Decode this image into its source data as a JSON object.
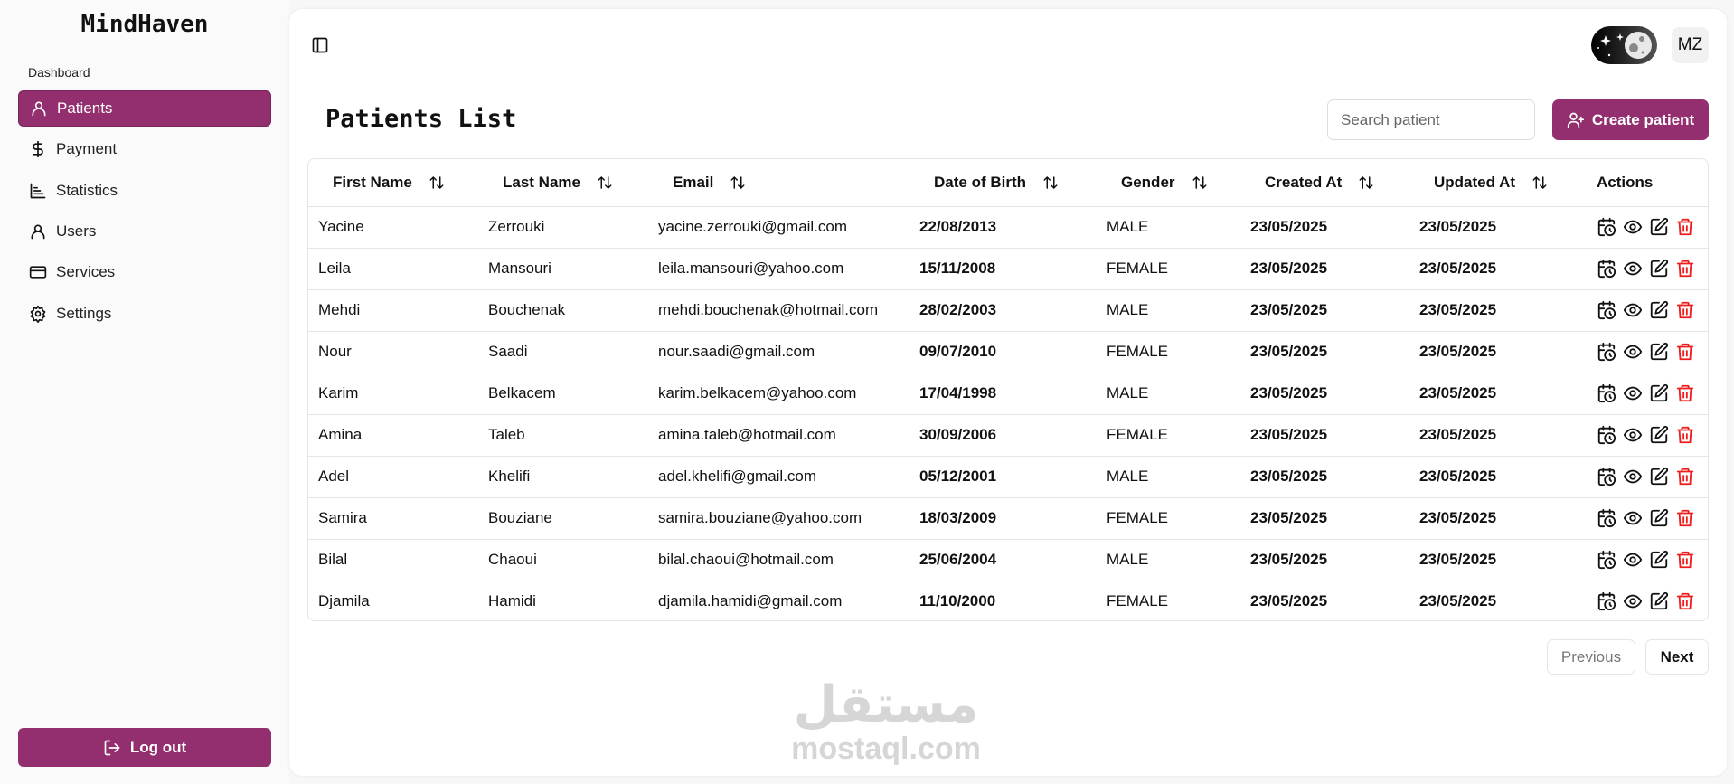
{
  "app": {
    "brand": "MindHaven",
    "section": "Dashboard"
  },
  "sidebar": {
    "items": [
      {
        "label": "Patients",
        "icon": "user-icon",
        "active": true
      },
      {
        "label": "Payment",
        "icon": "dollar-icon"
      },
      {
        "label": "Statistics",
        "icon": "chart-icon"
      },
      {
        "label": "Users",
        "icon": "user-icon"
      },
      {
        "label": "Services",
        "icon": "credit-card-icon"
      },
      {
        "label": "Settings",
        "icon": "gear-icon"
      }
    ],
    "logout": "Log out"
  },
  "header": {
    "avatar": "MZ",
    "theme": "dark"
  },
  "page": {
    "title": "Patients List",
    "search_placeholder": "Search patient",
    "create_label": "Create patient"
  },
  "table": {
    "columns": [
      "First Name",
      "Last Name",
      "Email",
      "Date of Birth",
      "Gender",
      "Created At",
      "Updated At",
      "Actions"
    ],
    "rows": [
      [
        "Yacine",
        "Zerrouki",
        "yacine.zerrouki@gmail.com",
        "22/08/2013",
        "MALE",
        "23/05/2025",
        "23/05/2025"
      ],
      [
        "Leila",
        "Mansouri",
        "leila.mansouri@yahoo.com",
        "15/11/2008",
        "FEMALE",
        "23/05/2025",
        "23/05/2025"
      ],
      [
        "Mehdi",
        "Bouchenak",
        "mehdi.bouchenak@hotmail.com",
        "28/02/2003",
        "MALE",
        "23/05/2025",
        "23/05/2025"
      ],
      [
        "Nour",
        "Saadi",
        "nour.saadi@gmail.com",
        "09/07/2010",
        "FEMALE",
        "23/05/2025",
        "23/05/2025"
      ],
      [
        "Karim",
        "Belkacem",
        "karim.belkacem@yahoo.com",
        "17/04/1998",
        "MALE",
        "23/05/2025",
        "23/05/2025"
      ],
      [
        "Amina",
        "Taleb",
        "amina.taleb@hotmail.com",
        "30/09/2006",
        "FEMALE",
        "23/05/2025",
        "23/05/2025"
      ],
      [
        "Adel",
        "Khelifi",
        "adel.khelifi@gmail.com",
        "05/12/2001",
        "MALE",
        "23/05/2025",
        "23/05/2025"
      ],
      [
        "Samira",
        "Bouziane",
        "samira.bouziane@yahoo.com",
        "18/03/2009",
        "FEMALE",
        "23/05/2025",
        "23/05/2025"
      ],
      [
        "Bilal",
        "Chaoui",
        "bilal.chaoui@hotmail.com",
        "25/06/2004",
        "MALE",
        "23/05/2025",
        "23/05/2025"
      ],
      [
        "Djamila",
        "Hamidi",
        "djamila.hamidi@gmail.com",
        "11/10/2000",
        "FEMALE",
        "23/05/2025",
        "23/05/2025"
      ]
    ]
  },
  "pagination": {
    "previous": "Previous",
    "next": "Next"
  },
  "watermark": {
    "arabic": "مستقل",
    "latin": "mostaql.com"
  },
  "colors": {
    "accent": "#932f6f",
    "danger": "#ef1c1c"
  }
}
